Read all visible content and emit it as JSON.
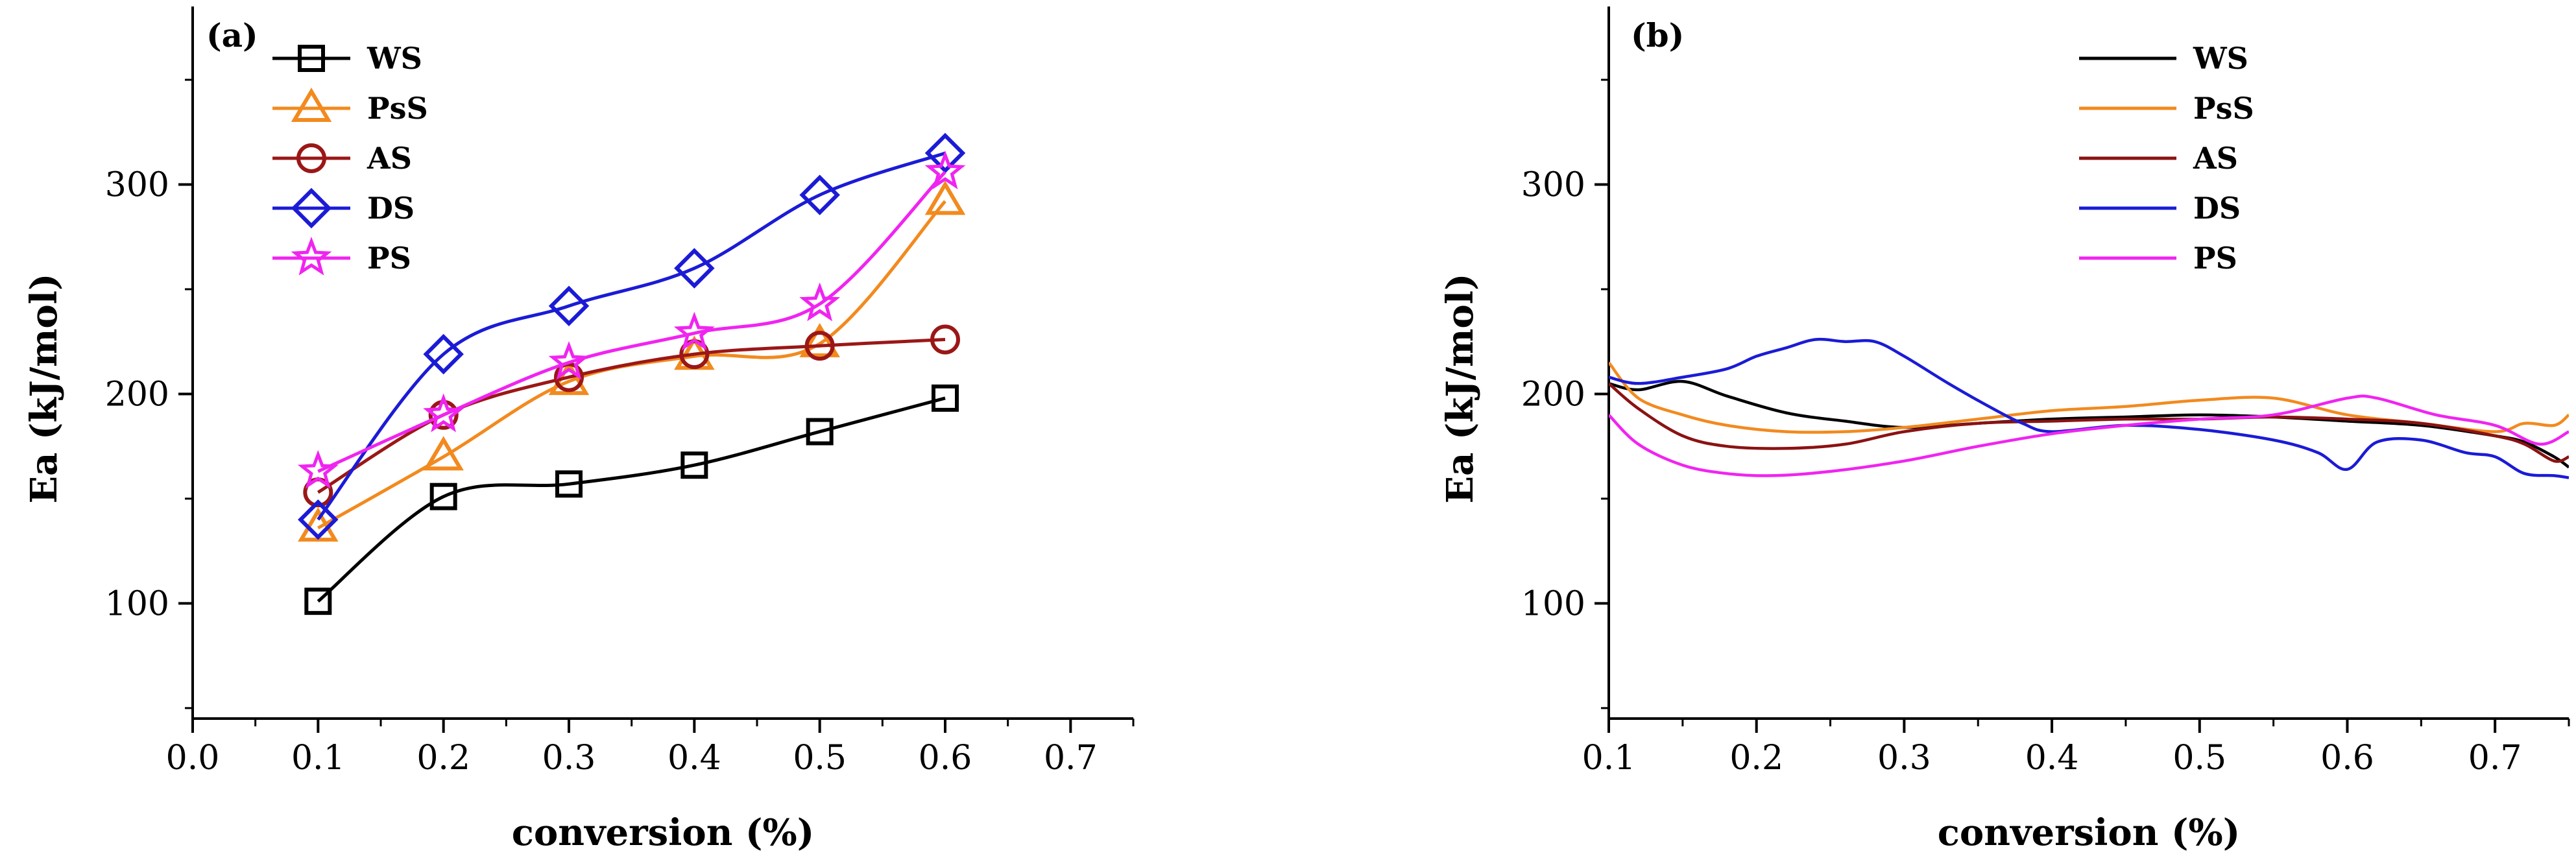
{
  "chart_data": [
    {
      "panel_label": "(a)",
      "type": "scatter",
      "xlabel": "conversion (%)",
      "ylabel": "Ea (kJ/mol)",
      "xlim": [
        0.0,
        0.75
      ],
      "ylim": [
        45,
        385
      ],
      "xticks": [
        "0.0",
        "0.1",
        "0.2",
        "0.3",
        "0.4",
        "0.5",
        "0.6",
        "0.7"
      ],
      "yticks": [
        "100",
        "200",
        "300"
      ],
      "x": [
        0.1,
        0.2,
        0.3,
        0.4,
        0.5,
        0.6
      ],
      "series": [
        {
          "name": "WS",
          "marker": "square",
          "color": "#000000",
          "values": [
            101,
            151,
            157,
            166,
            182,
            198
          ]
        },
        {
          "name": "PsS",
          "marker": "triangle",
          "color": "#f28a1e",
          "values": [
            136,
            170,
            206,
            218,
            224,
            292
          ]
        },
        {
          "name": "AS",
          "marker": "circle",
          "color": "#9b1717",
          "values": [
            153,
            190,
            208,
            219,
            223,
            226
          ]
        },
        {
          "name": "DS",
          "marker": "diamond",
          "color": "#1b1bd6",
          "values": [
            140,
            219,
            242,
            260,
            295,
            315
          ]
        },
        {
          "name": "PS",
          "marker": "star",
          "color": "#f024f0",
          "values": [
            163,
            190,
            215,
            229,
            243,
            306
          ]
        }
      ]
    },
    {
      "panel_label": "(b)",
      "type": "line",
      "xlabel": "conversion (%)",
      "ylabel": "Ea (kJ/mol)",
      "xlim": [
        0.1,
        0.75
      ],
      "ylim": [
        45,
        385
      ],
      "xticks": [
        "0.1",
        "0.2",
        "0.3",
        "0.4",
        "0.5",
        "0.6",
        "0.7"
      ],
      "yticks": [
        "100",
        "200",
        "300"
      ],
      "series": [
        {
          "name": "WS",
          "color": "#000000",
          "x": [
            0.1,
            0.12,
            0.15,
            0.18,
            0.22,
            0.26,
            0.3,
            0.35,
            0.4,
            0.45,
            0.5,
            0.55,
            0.6,
            0.65,
            0.7,
            0.72,
            0.74,
            0.75
          ],
          "values": [
            205,
            202,
            206,
            199,
            191,
            187,
            184,
            186,
            188,
            189,
            190,
            189,
            187,
            185,
            180,
            177,
            170,
            165
          ]
        },
        {
          "name": "PsS",
          "color": "#f28a1e",
          "x": [
            0.1,
            0.12,
            0.15,
            0.18,
            0.22,
            0.26,
            0.3,
            0.35,
            0.4,
            0.45,
            0.5,
            0.55,
            0.6,
            0.65,
            0.7,
            0.72,
            0.74,
            0.75
          ],
          "values": [
            215,
            198,
            190,
            185,
            182,
            182,
            184,
            188,
            192,
            194,
            197,
            198,
            190,
            186,
            182,
            186,
            185,
            190
          ]
        },
        {
          "name": "AS",
          "color": "#8b1212",
          "x": [
            0.1,
            0.12,
            0.15,
            0.18,
            0.22,
            0.26,
            0.3,
            0.35,
            0.4,
            0.45,
            0.5,
            0.55,
            0.6,
            0.65,
            0.7,
            0.72,
            0.74,
            0.75
          ],
          "values": [
            205,
            193,
            180,
            175,
            174,
            176,
            182,
            186,
            187,
            188,
            188,
            189,
            188,
            186,
            180,
            176,
            168,
            170
          ]
        },
        {
          "name": "DS",
          "color": "#1b1bd6",
          "x": [
            0.1,
            0.12,
            0.15,
            0.18,
            0.2,
            0.22,
            0.24,
            0.26,
            0.28,
            0.3,
            0.33,
            0.36,
            0.38,
            0.4,
            0.45,
            0.5,
            0.55,
            0.58,
            0.6,
            0.62,
            0.65,
            0.68,
            0.7,
            0.72,
            0.74,
            0.75
          ],
          "values": [
            208,
            205,
            208,
            212,
            218,
            222,
            226,
            225,
            225,
            218,
            205,
            193,
            186,
            182,
            185,
            183,
            178,
            172,
            164,
            177,
            178,
            172,
            170,
            162,
            161,
            160
          ]
        },
        {
          "name": "PS",
          "color": "#f024f0",
          "x": [
            0.1,
            0.12,
            0.15,
            0.18,
            0.21,
            0.25,
            0.3,
            0.35,
            0.4,
            0.45,
            0.5,
            0.55,
            0.6,
            0.62,
            0.66,
            0.7,
            0.73,
            0.75
          ],
          "values": [
            190,
            176,
            166,
            162,
            161,
            163,
            168,
            175,
            181,
            185,
            188,
            190,
            198,
            198,
            190,
            185,
            176,
            182
          ]
        }
      ]
    }
  ]
}
